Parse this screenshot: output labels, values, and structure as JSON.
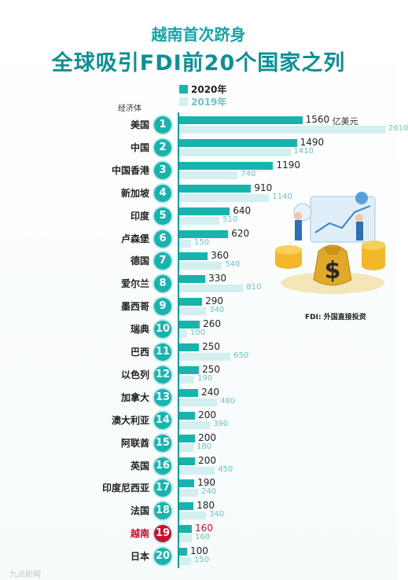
{
  "title_line1": "越南首次跻身",
  "title_line2": "全球吸引FDI前20个国家之列",
  "legend": [
    {
      "label": "2020年",
      "color": "#19b3ae"
    },
    {
      "label": "2019年",
      "color": "#d3eff0"
    }
  ],
  "column_header": "经济体",
  "unit_label": "亿美元",
  "footnote": "FDI: 外国直接投资",
  "watermark": "九派新闻",
  "colors": {
    "accent": "#19b3ae",
    "secondary": "#d3eff0",
    "highlight": "#c8102e",
    "value2019_text": "#6fc2c0"
  },
  "chart_data": {
    "type": "bar",
    "categories": [
      "美国",
      "中国",
      "中国香港",
      "新加坡",
      "印度",
      "卢森堡",
      "德国",
      "爱尔兰",
      "墨西哥",
      "瑞典",
      "巴西",
      "以色列",
      "加拿大",
      "澳大利亚",
      "阿联酋",
      "英国",
      "印度尼西亚",
      "法国",
      "越南",
      "日本"
    ],
    "ranks": [
      1,
      2,
      3,
      4,
      5,
      6,
      7,
      8,
      9,
      10,
      11,
      12,
      13,
      14,
      15,
      16,
      17,
      18,
      19,
      20
    ],
    "series": [
      {
        "name": "2020年",
        "values": [
          1560,
          1490,
          1190,
          910,
          640,
          620,
          360,
          330,
          290,
          260,
          250,
          250,
          240,
          200,
          200,
          200,
          190,
          180,
          160,
          100
        ]
      },
      {
        "name": "2019年",
        "values": [
          2610,
          1410,
          740,
          1140,
          510,
          150,
          540,
          810,
          340,
          100,
          650,
          190,
          480,
          390,
          180,
          450,
          240,
          340,
          160,
          150
        ]
      }
    ],
    "highlight_category": "越南",
    "xmax": 2610
  }
}
